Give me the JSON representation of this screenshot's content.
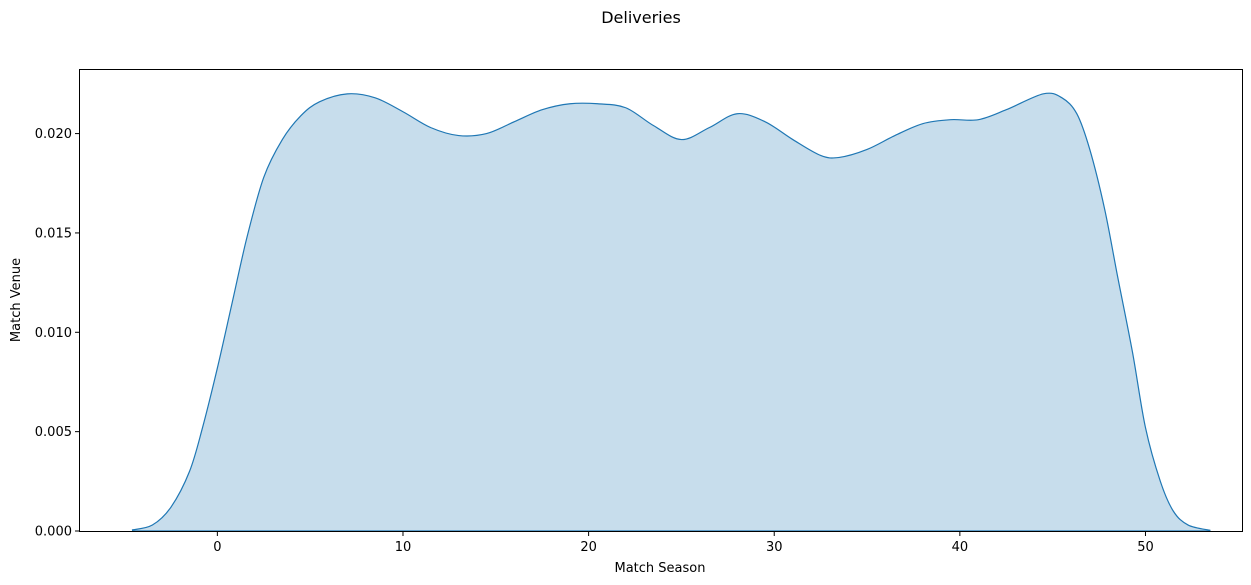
{
  "chart_data": {
    "type": "area",
    "title": "Deliveries",
    "xlabel": "Match Season",
    "ylabel": "Match Venue",
    "xlim": [
      -7.4,
      55.2
    ],
    "ylim": [
      0,
      0.0232
    ],
    "xticks": [
      0,
      10,
      20,
      30,
      40,
      50
    ],
    "yticks": [
      0,
      0.005,
      0.01,
      0.015,
      0.02
    ],
    "xtick_labels": [
      "0",
      "10",
      "20",
      "30",
      "40",
      "50"
    ],
    "ytick_labels": [
      "0.000",
      "0.005",
      "0.010",
      "0.015",
      "0.020"
    ],
    "grid": false,
    "line_color": "#1f77b4",
    "fill_color": "#1f77b4",
    "fill_opacity": 0.25,
    "series": [
      {
        "x": [
          -4.6,
          -3.5,
          -2.5,
          -1.5,
          -0.8,
          0,
          0.8,
          1.6,
          2.5,
          3.5,
          4.5,
          5.5,
          7,
          8.5,
          10,
          11.5,
          13,
          14.5,
          16,
          17.5,
          19,
          20.5,
          22,
          23.5,
          25,
          26.5,
          28,
          29.5,
          31,
          32.5,
          33.5,
          35,
          36.5,
          38,
          39.5,
          41,
          42.5,
          44.5,
          45.5,
          46.3,
          47,
          47.8,
          48.5,
          49.3,
          50,
          50.8,
          51.5,
          52.3,
          53.5
        ],
        "y": [
          5e-05,
          0.0003,
          0.0012,
          0.003,
          0.0052,
          0.0082,
          0.0115,
          0.0148,
          0.0178,
          0.0197,
          0.0209,
          0.0216,
          0.022,
          0.0218,
          0.0211,
          0.0203,
          0.0199,
          0.02,
          0.0206,
          0.0212,
          0.0215,
          0.0215,
          0.0213,
          0.0204,
          0.0197,
          0.0203,
          0.021,
          0.0206,
          0.0197,
          0.0189,
          0.0188,
          0.0192,
          0.0199,
          0.0205,
          0.0207,
          0.0207,
          0.0212,
          0.022,
          0.0218,
          0.021,
          0.0192,
          0.0162,
          0.0128,
          0.009,
          0.0052,
          0.0025,
          0.001,
          0.0003,
          3e-05
        ]
      }
    ]
  }
}
